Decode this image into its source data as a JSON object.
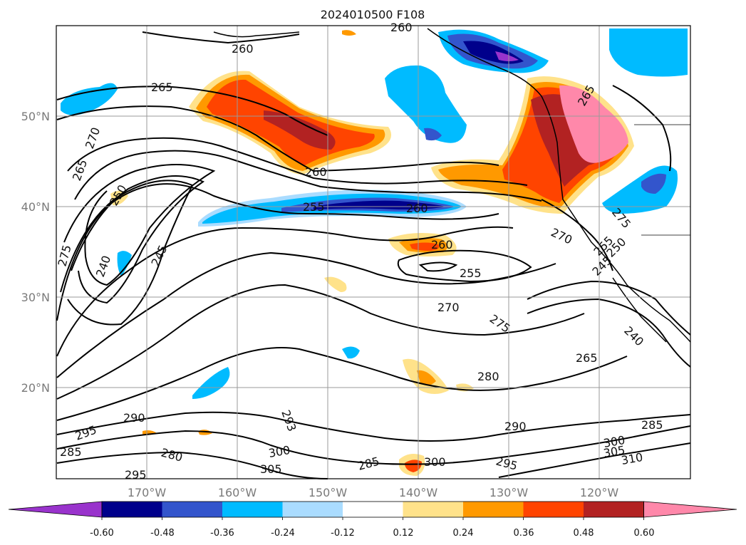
{
  "title": "2024010500 F108",
  "lat_labels": [
    "50°N",
    "40°N",
    "30°N",
    "20°N"
  ],
  "lon_labels": [
    "170°W",
    "160°W",
    "150°W",
    "140°W",
    "130°W",
    "120°W"
  ],
  "contour_labels": [
    "260",
    "260",
    "265",
    "265",
    "270",
    "265",
    "260",
    "250",
    "255",
    "260",
    "255",
    "260",
    "240",
    "245",
    "275",
    "270",
    "255",
    "250",
    "245",
    "275",
    "270",
    "275",
    "265",
    "240",
    "280",
    "290",
    "295",
    "285",
    "280",
    "290",
    "293",
    "300",
    "305",
    "285",
    "300",
    "295",
    "285",
    "300",
    "305",
    "310",
    "295"
  ],
  "colorbar": {
    "ticks": [
      "-0.60",
      "-0.48",
      "-0.36",
      "-0.24",
      "-0.12",
      "0.12",
      "0.24",
      "0.36",
      "0.48",
      "0.60"
    ],
    "colors": [
      "#9933cc",
      "#00008b",
      "#3355cc",
      "#00bbff",
      "#aadcff",
      "#ffffff",
      "#ffe28a",
      "#ff9900",
      "#ff4400",
      "#b22222",
      "#ff88aa"
    ]
  },
  "colors": {
    "gridline": "#9a9a9a",
    "contour": "#000000",
    "coast": "#000000"
  }
}
